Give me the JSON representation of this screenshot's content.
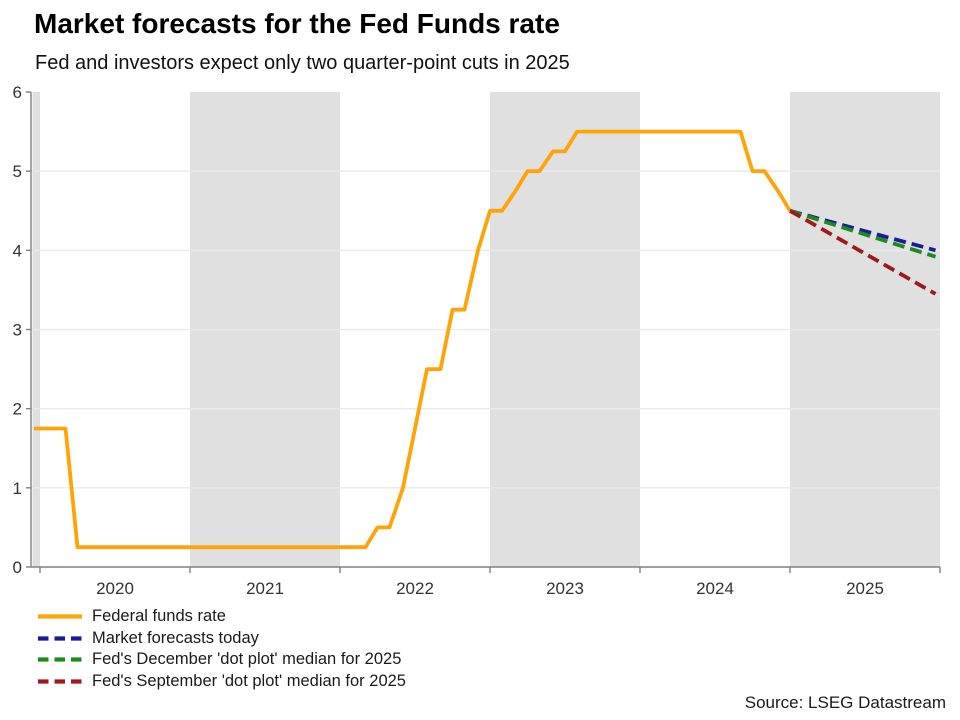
{
  "title": "Market forecasts for the Fed Funds rate",
  "subtitle": "Fed and investors expect only two quarter-point cuts in 2025",
  "source": "Source: LSEG Datastream",
  "colors": {
    "band_gray": "#e0e0e0",
    "gridline": "#eaeaea",
    "axis": "#808080",
    "tick_text": "#333333"
  },
  "chart_data": {
    "type": "line",
    "title": "Market forecasts for the Fed Funds rate",
    "subtitle": "Fed and investors expect only two quarter-point cuts in 2025",
    "xlabel": "",
    "ylabel": "",
    "x_axis": {
      "range": [
        2019.95,
        2026
      ],
      "ticks": [
        2020,
        2021,
        2022,
        2023,
        2024,
        2025
      ],
      "shaded_years": [
        2019,
        2021,
        2023,
        2025
      ]
    },
    "y_axis": {
      "range": [
        0,
        6
      ],
      "ticks": [
        0,
        1,
        2,
        3,
        4,
        5,
        6
      ]
    },
    "grid": "horizontal",
    "legend_position": "bottom-left",
    "series": [
      {
        "id": "federal-funds-rate",
        "name": "Federal funds rate",
        "color": "#FFA408",
        "style": "solid",
        "points": [
          [
            2019.96,
            1.75
          ],
          [
            2020.17,
            1.75
          ],
          [
            2020.25,
            0.25
          ],
          [
            2022.17,
            0.25
          ],
          [
            2022.25,
            0.5
          ],
          [
            2022.33,
            0.5
          ],
          [
            2022.42,
            1.0
          ],
          [
            2022.5,
            1.75
          ],
          [
            2022.58,
            2.5
          ],
          [
            2022.67,
            2.5
          ],
          [
            2022.75,
            3.25
          ],
          [
            2022.83,
            3.25
          ],
          [
            2022.92,
            4.0
          ],
          [
            2023.0,
            4.5
          ],
          [
            2023.08,
            4.5
          ],
          [
            2023.17,
            4.75
          ],
          [
            2023.25,
            5.0
          ],
          [
            2023.33,
            5.0
          ],
          [
            2023.42,
            5.25
          ],
          [
            2023.5,
            5.25
          ],
          [
            2023.58,
            5.5
          ],
          [
            2024.67,
            5.5
          ],
          [
            2024.75,
            5.0
          ],
          [
            2024.83,
            5.0
          ],
          [
            2024.92,
            4.75
          ],
          [
            2025.0,
            4.5
          ]
        ]
      },
      {
        "id": "market-forecasts-today",
        "name": "Market forecasts today",
        "color": "#1a1a9c",
        "style": "dashed",
        "points": [
          [
            2025.0,
            4.5
          ],
          [
            2025.97,
            4.0
          ]
        ]
      },
      {
        "id": "fed-december-dot-plot-median-2025",
        "name": "Fed's December 'dot plot' median for 2025",
        "color": "#1d8a1d",
        "style": "dashed",
        "points": [
          [
            2025.0,
            4.5
          ],
          [
            2025.97,
            3.92
          ]
        ]
      },
      {
        "id": "fed-september-dot-plot-median-2025",
        "name": "Fed's September 'dot plot' median for 2025",
        "color": "#9c1a1a",
        "style": "dashed",
        "points": [
          [
            2025.0,
            4.5
          ],
          [
            2025.97,
            3.45
          ]
        ]
      }
    ]
  }
}
